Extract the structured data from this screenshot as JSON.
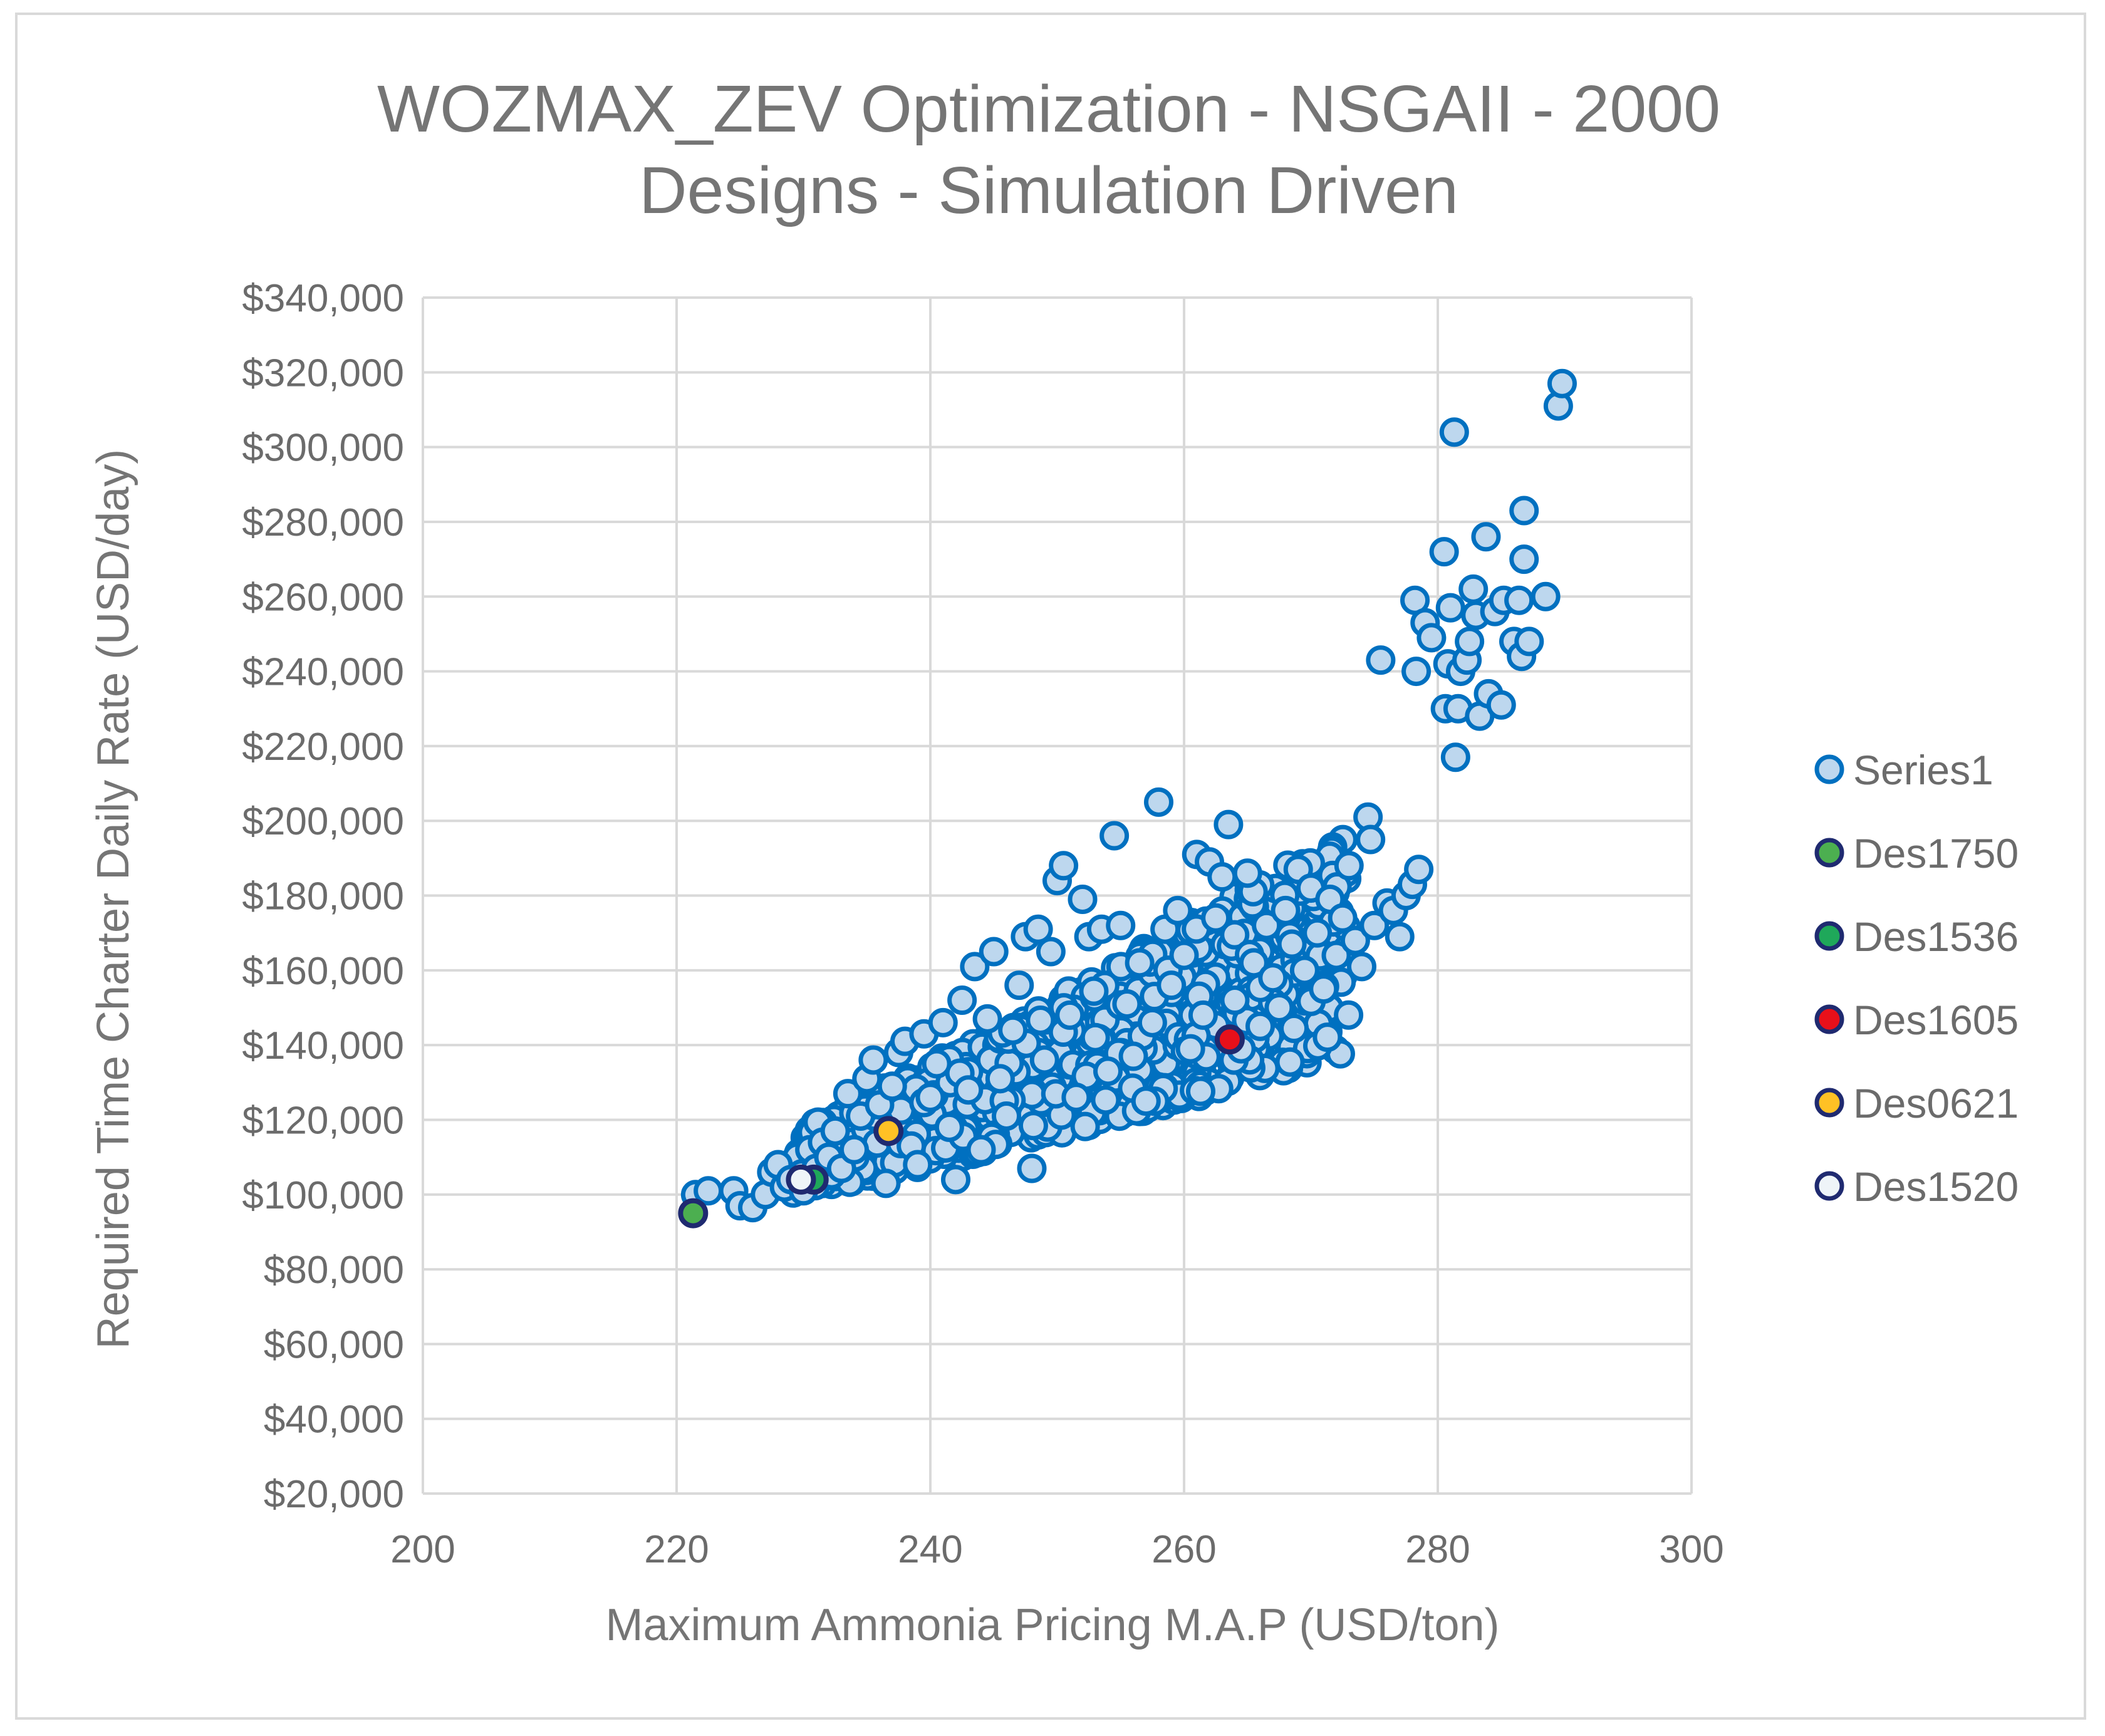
{
  "chart_data": {
    "type": "scatter",
    "title_lines": [
      "WOZMAX_ZEV Optimization - NSGAII - 2000",
      "Designs - Simulation Driven"
    ],
    "xlabel": "Maximum Ammonia Pricing M.A.P (USD/ton)",
    "ylabel": "Required Time Charter Daily Rate (USD/day)",
    "xlim": [
      200,
      300
    ],
    "ylim": [
      20000,
      340000
    ],
    "x_ticks": [
      "200",
      "220",
      "240",
      "260",
      "280",
      "300"
    ],
    "y_ticks": [
      "$20,000",
      "$40,000",
      "$60,000",
      "$80,000",
      "$100,000",
      "$120,000",
      "$140,000",
      "$160,000",
      "$180,000",
      "$200,000",
      "$220,000",
      "$240,000",
      "$260,000",
      "$280,000",
      "$300,000",
      "$320,000",
      "$340,000"
    ],
    "grid": true,
    "legend_position": "right",
    "series": [
      {
        "name": "Series1",
        "fill": "#bdd7ee",
        "stroke": "#0070c0",
        "points": [
          [
            221.5,
            100000
          ],
          [
            222.5,
            101000
          ],
          [
            224.5,
            101000
          ],
          [
            225,
            97000
          ],
          [
            226,
            96500
          ],
          [
            227,
            100000
          ],
          [
            227.5,
            106000
          ],
          [
            228,
            108000
          ],
          [
            228.5,
            102000
          ],
          [
            229,
            104000
          ],
          [
            230,
            101000
          ],
          [
            230.5,
            112000
          ],
          [
            231,
            107000
          ],
          [
            231.5,
            114000
          ],
          [
            232,
            110000
          ],
          [
            232.5,
            117000
          ],
          [
            233,
            107000
          ],
          [
            233.5,
            127000
          ],
          [
            234,
            112000
          ],
          [
            234.5,
            121000
          ],
          [
            235,
            131000
          ],
          [
            235.5,
            136000
          ],
          [
            236,
            124000
          ],
          [
            236.5,
            103000
          ],
          [
            237,
            129000
          ],
          [
            237.5,
            138000
          ],
          [
            238,
            141000
          ],
          [
            238.5,
            113000
          ],
          [
            239,
            108000
          ],
          [
            239.5,
            143000
          ],
          [
            240,
            126000
          ],
          [
            240.5,
            135000
          ],
          [
            241,
            146000
          ],
          [
            241.5,
            118000
          ],
          [
            242,
            104000
          ],
          [
            242.5,
            152000
          ],
          [
            243,
            128000
          ],
          [
            243.5,
            161000
          ],
          [
            244,
            112000
          ],
          [
            244.5,
            147000
          ],
          [
            245,
            165000
          ],
          [
            245.5,
            131000
          ],
          [
            246,
            121000
          ],
          [
            246.5,
            144000
          ],
          [
            247,
            156000
          ],
          [
            247.5,
            169000
          ],
          [
            248,
            107000
          ],
          [
            248.5,
            171000
          ],
          [
            249,
            136000
          ],
          [
            249.5,
            165000
          ],
          [
            250,
            184000
          ],
          [
            250.5,
            188000
          ],
          [
            251,
            148000
          ],
          [
            251.5,
            126000
          ],
          [
            252,
            179000
          ],
          [
            252.5,
            169000
          ],
          [
            253,
            142000
          ],
          [
            253.5,
            171000
          ],
          [
            254,
            133000
          ],
          [
            254.5,
            196000
          ],
          [
            255,
            172000
          ],
          [
            255.5,
            151000
          ],
          [
            256,
            137000
          ],
          [
            256.5,
            162000
          ],
          [
            257,
            125000
          ],
          [
            257.5,
            146000
          ],
          [
            258,
            205000
          ],
          [
            258.5,
            171000
          ],
          [
            259,
            156000
          ],
          [
            259.5,
            176000
          ],
          [
            260,
            164000
          ],
          [
            260.5,
            139000
          ],
          [
            261,
            191000
          ],
          [
            261.5,
            148000
          ],
          [
            262,
            189000
          ],
          [
            262.5,
            174000
          ],
          [
            263,
            185000
          ],
          [
            263.5,
            199000
          ],
          [
            264,
            152000
          ],
          [
            264.5,
            139000
          ],
          [
            265,
            186000
          ],
          [
            265.5,
            162000
          ],
          [
            266,
            145000
          ],
          [
            266.5,
            172000
          ],
          [
            267,
            158000
          ],
          [
            267.5,
            150000
          ],
          [
            268,
            176000
          ],
          [
            268.5,
            167000
          ],
          [
            269,
            187000
          ],
          [
            269.5,
            160000
          ],
          [
            270,
            182000
          ],
          [
            270.5,
            170000
          ],
          [
            271,
            155000
          ],
          [
            271.5,
            179000
          ],
          [
            272,
            164000
          ],
          [
            272.5,
            174000
          ],
          [
            273,
            188000
          ],
          [
            273.5,
            168000
          ],
          [
            274,
            161000
          ],
          [
            274.5,
            201000
          ],
          [
            274.7,
            195000
          ],
          [
            275,
            172000
          ],
          [
            275.5,
            243000
          ],
          [
            276,
            178000
          ],
          [
            276.5,
            176000
          ],
          [
            277,
            169000
          ],
          [
            277.5,
            180000
          ],
          [
            278,
            183000
          ],
          [
            278.5,
            187000
          ],
          [
            278.2,
            259000
          ],
          [
            278.3,
            240000
          ],
          [
            279,
            253000
          ],
          [
            279.5,
            249000
          ],
          [
            280.5,
            272000
          ],
          [
            280.6,
            230000
          ],
          [
            280.8,
            242000
          ],
          [
            281,
            257000
          ],
          [
            281.3,
            304000
          ],
          [
            281.4,
            217000
          ],
          [
            281.6,
            230000
          ],
          [
            281.8,
            240000
          ],
          [
            282.3,
            243000
          ],
          [
            282.5,
            248000
          ],
          [
            282.8,
            262000
          ],
          [
            283,
            255000
          ],
          [
            283.3,
            228000
          ],
          [
            283.8,
            276000
          ],
          [
            284,
            234000
          ],
          [
            284.5,
            256000
          ],
          [
            285,
            231000
          ],
          [
            285.2,
            259000
          ],
          [
            286,
            248000
          ],
          [
            286.4,
            259000
          ],
          [
            286.6,
            244000
          ],
          [
            286.8,
            283000
          ],
          [
            286.8,
            270000
          ],
          [
            287.2,
            248000
          ],
          [
            288.5,
            260000
          ],
          [
            289.5,
            311000
          ],
          [
            289.8,
            317000
          ]
        ]
      },
      {
        "name": "Des1750",
        "fill": "#4caf50",
        "stroke": "#1f2a70",
        "points": [
          [
            221.3,
            95000
          ]
        ]
      },
      {
        "name": "Des1536",
        "fill": "#1fa85a",
        "stroke": "#1f2a70",
        "points": [
          [
            230.8,
            104000
          ]
        ]
      },
      {
        "name": "Des1605",
        "fill": "#e8101a",
        "stroke": "#1f2a70",
        "points": [
          [
            263.6,
            141500
          ]
        ]
      },
      {
        "name": "Des0621",
        "fill": "#ffc125",
        "stroke": "#1f2a70",
        "points": [
          [
            236.7,
            117000
          ]
        ]
      },
      {
        "name": "Des1520",
        "fill": "#eef4f8",
        "stroke": "#1f2a70",
        "points": [
          [
            229.8,
            104000
          ]
        ]
      }
    ]
  }
}
